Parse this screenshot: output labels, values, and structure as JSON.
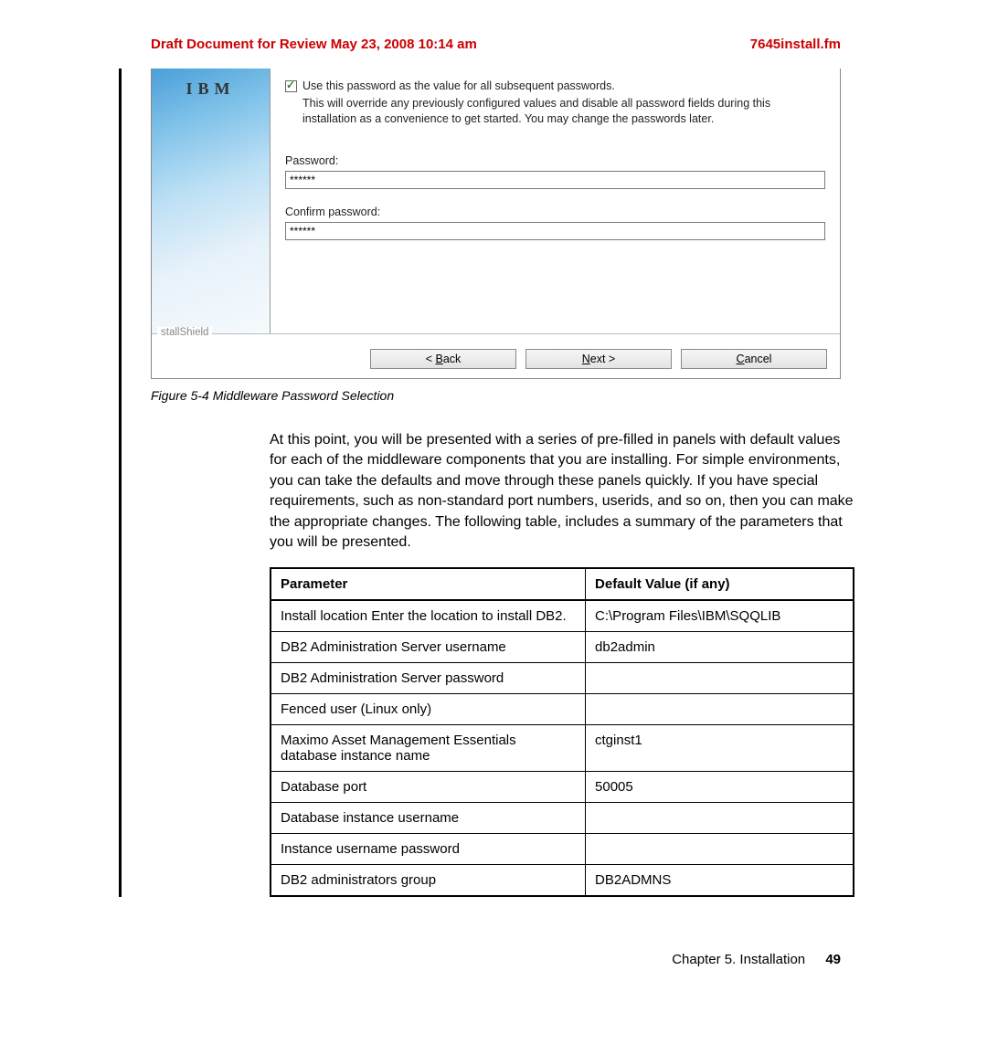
{
  "header": {
    "draft": "Draft Document for Review May 23, 2008 10:14 am",
    "filename": "7645install.fm"
  },
  "installer": {
    "logo": "IBM",
    "checkboxLabel": "Use this password as the value for all subsequent passwords.",
    "description": "This will override any previously configured values and disable all password fields during this installation as a convenience to get started. You may change the passwords later.",
    "passwordLabel": "Password:",
    "passwordValue": "******",
    "confirmLabel": "Confirm password:",
    "confirmValue": "******",
    "shield": "stallShield",
    "backBtn": "< Back",
    "nextBtn": "Next >",
    "cancelBtn": "Cancel"
  },
  "caption": "Figure 5-4   Middleware Password Selection",
  "bodyText": "At this point, you will be presented with a series of pre-filled in panels with default values for each of the middleware components that you are installing. For simple environments, you can take the defaults and move through these panels quickly. If you have special requirements, such as non-standard port numbers, userids, and so on, then you can make the appropriate changes. The following table, includes a summary of the parameters that you will be presented.",
  "table": {
    "headers": [
      "Parameter",
      "Default Value (if any)"
    ],
    "rows": [
      [
        "Install location Enter the location to install DB2.",
        "C:\\Program Files\\IBM\\SQQLIB"
      ],
      [
        "DB2 Administration Server username",
        "db2admin"
      ],
      [
        "DB2 Administration Server password",
        ""
      ],
      [
        "Fenced user (Linux only)",
        ""
      ],
      [
        "Maximo Asset Management Essentials database instance name",
        "ctginst1"
      ],
      [
        "Database port",
        "50005"
      ],
      [
        "Database instance username",
        ""
      ],
      [
        "Instance username password",
        ""
      ],
      [
        "DB2 administrators group",
        "DB2ADMNS"
      ]
    ]
  },
  "footer": {
    "chapter": "Chapter 5. Installation",
    "page": "49"
  }
}
